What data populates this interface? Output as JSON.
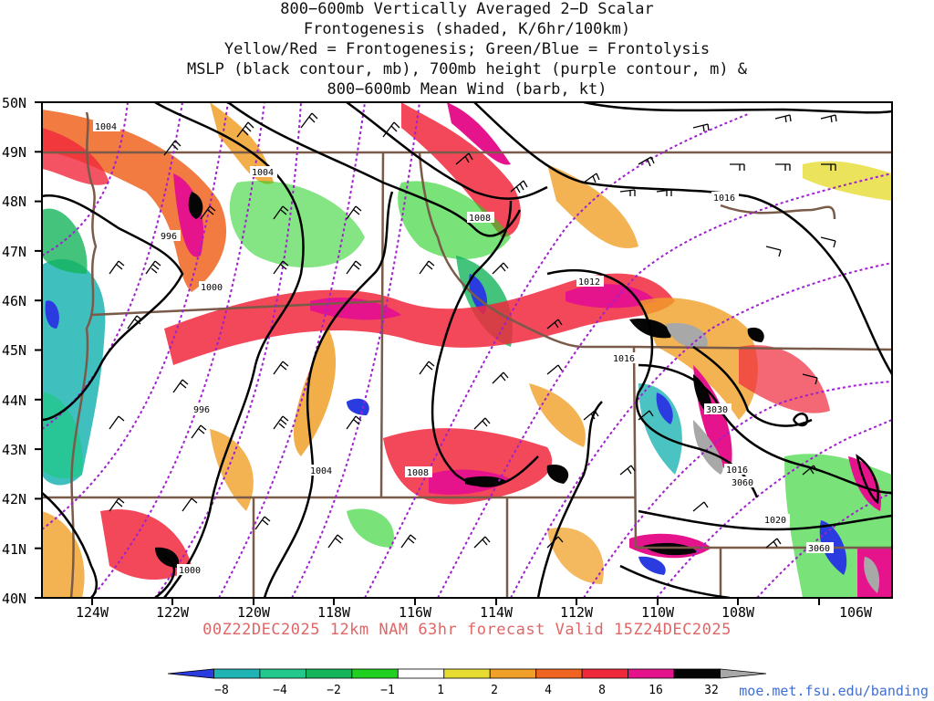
{
  "title_lines": [
    "800−600mb Vertically Averaged 2−D Scalar",
    "Frontogenesis (shaded, K/6hr/100km)",
    "Yellow/Red = Frontogenesis;  Green/Blue = Frontolysis",
    "MSLP (black contour, mb), 700mb height (purple contour, m) &",
    "800−600mb Mean Wind (barb, kt)"
  ],
  "valid_text": "00Z22DEC2025 12km NAM 63hr forecast Valid 15Z24DEC2025",
  "credit": "moe.met.fsu.edu/banding",
  "lat_labels": [
    "50N",
    "49N",
    "48N",
    "47N",
    "46N",
    "45N",
    "44N",
    "43N",
    "42N",
    "41N",
    "40N"
  ],
  "lon_labels": [
    "124W",
    "122W",
    "120W",
    "118W",
    "116W",
    "114W",
    "112W",
    "110W",
    "108W",
    "106W"
  ],
  "contour_labels": {
    "mslp": [
      "1004",
      "1008",
      "1012",
      "1016",
      "996",
      "1000",
      "996",
      "1004",
      "1008",
      "1016",
      "1016",
      "1020",
      "1000",
      "1004"
    ],
    "height": [
      "3030",
      "3060",
      "3060"
    ]
  },
  "colorbar": {
    "labels": [
      "−8",
      "−4",
      "−2",
      "−1",
      "1",
      "2",
      "4",
      "8",
      "16",
      "32"
    ],
    "colors": [
      "#2a3ce0",
      "#1eb4b4",
      "#22c88c",
      "#14b45a",
      "#20d020",
      "#ffffff",
      "#e6dc32",
      "#f0a028",
      "#ee6420",
      "#f0283c",
      "#e6148c",
      "#050505",
      "#a8a8a8"
    ]
  }
}
